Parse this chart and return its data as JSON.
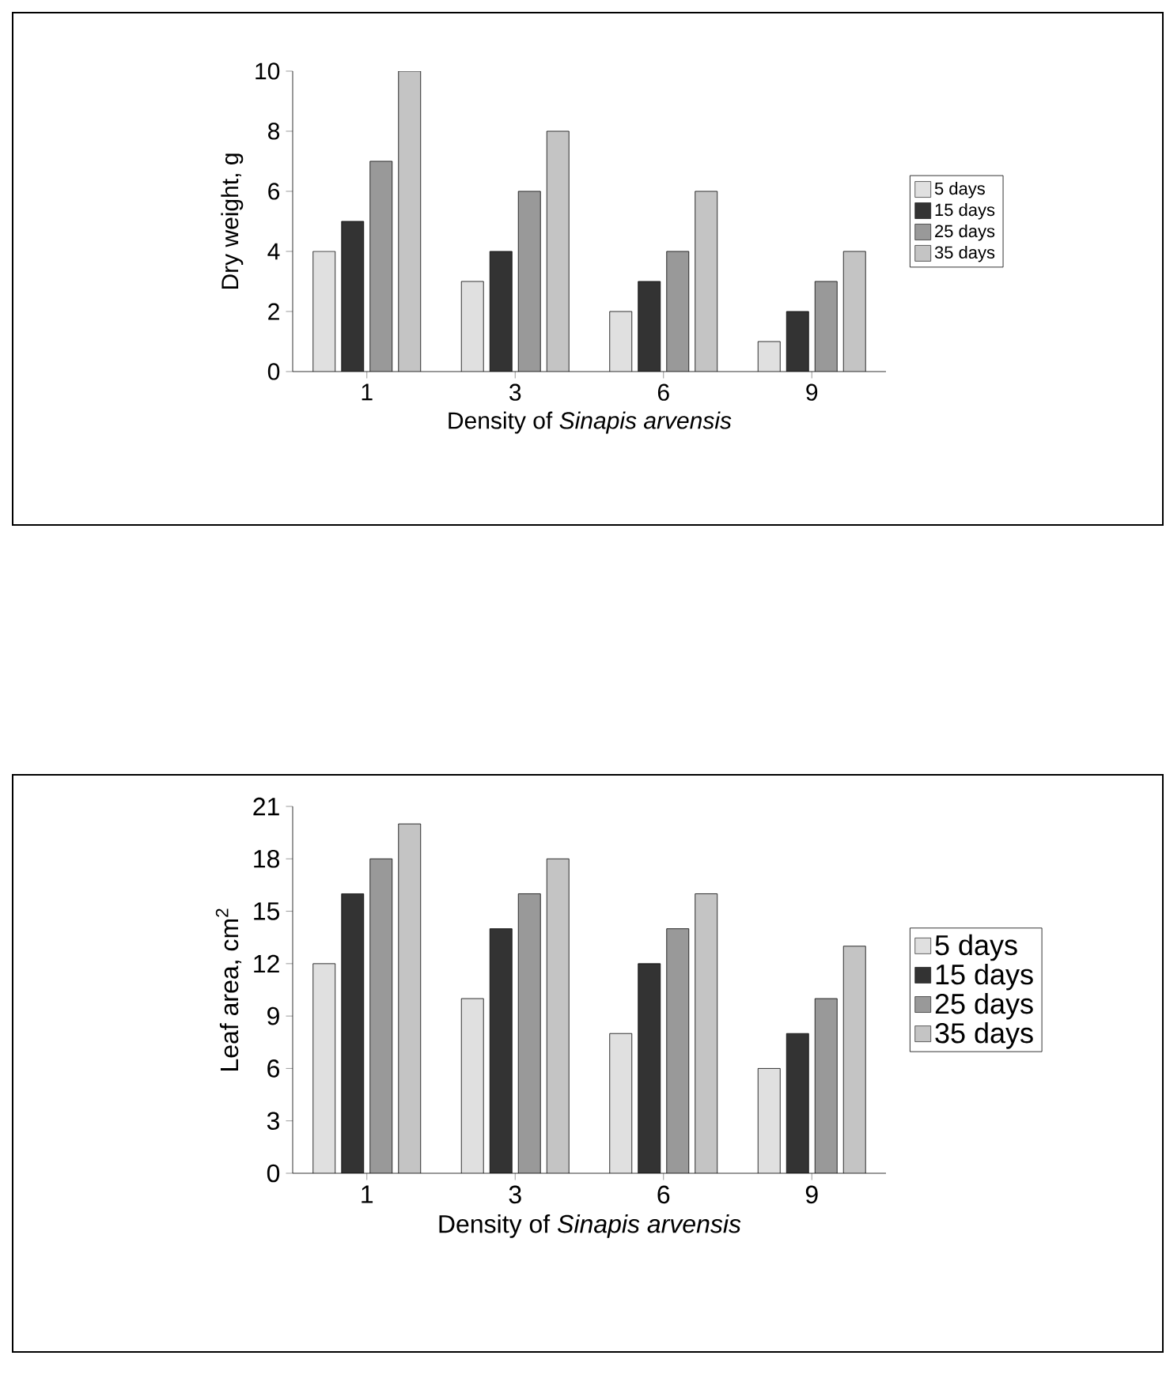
{
  "chart_data": [
    {
      "type": "bar",
      "xlabel": "Density of *Sinapis arvensis*",
      "ylabel": "Dry weight, g",
      "categories": [
        "1",
        "3",
        "6",
        "9"
      ],
      "ylim": [
        0,
        10
      ],
      "yticks": [
        0,
        2,
        4,
        6,
        8,
        10
      ],
      "legend": "right",
      "series": [
        {
          "name": "5 days",
          "color": "#e0e0e0",
          "values": [
            4,
            3,
            2,
            1
          ]
        },
        {
          "name": "15 days",
          "color": "#333333",
          "values": [
            5,
            4,
            3,
            2
          ]
        },
        {
          "name": "25 days",
          "color": "#999999",
          "values": [
            7,
            6,
            4,
            3
          ]
        },
        {
          "name": "35 days",
          "color": "#c4c4c4",
          "values": [
            10,
            8,
            6,
            4
          ]
        }
      ]
    },
    {
      "type": "bar",
      "xlabel": "Density of *Sinapis arvensis*",
      "ylabel": "Leaf area, cm$^{2}$",
      "categories": [
        "1",
        "3",
        "6",
        "9"
      ],
      "ylim": [
        0,
        21
      ],
      "yticks": [
        0,
        3,
        6,
        9,
        12,
        15,
        18,
        21
      ],
      "legend": "right",
      "series": [
        {
          "name": "5 days",
          "color": "#e0e0e0",
          "values": [
            12,
            10,
            8,
            6
          ]
        },
        {
          "name": "15 days",
          "color": "#333333",
          "values": [
            16,
            14,
            12,
            8
          ]
        },
        {
          "name": "25 days",
          "color": "#999999",
          "values": [
            18,
            16,
            14,
            10
          ]
        },
        {
          "name": "35 days",
          "color": "#c4c4c4",
          "values": [
            20,
            18,
            16,
            13
          ]
        }
      ]
    }
  ]
}
